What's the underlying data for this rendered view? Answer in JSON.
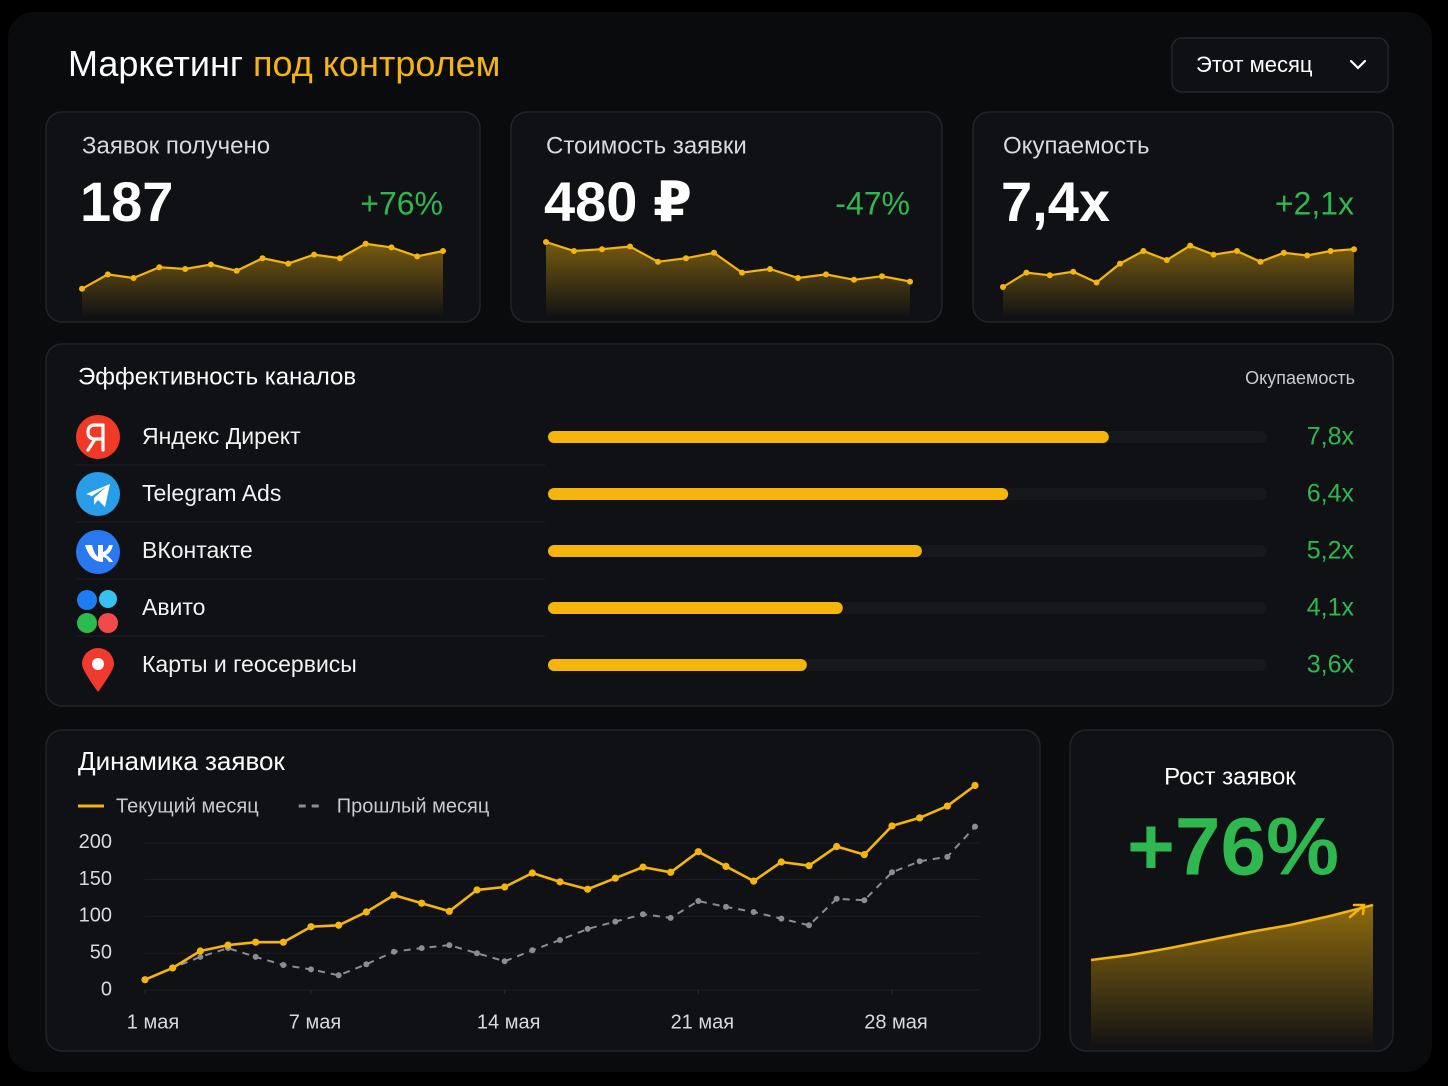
{
  "header": {
    "title": "Маркетинг",
    "title_accent": "под контролем",
    "period": "Этот месяц"
  },
  "kpis": [
    {
      "label": "Заявок получено",
      "value": "187",
      "change": "+76%",
      "sparkline": {
        "type": "line",
        "values": [
          18,
          34,
          30,
          42,
          40,
          45,
          38,
          52,
          46,
          56,
          52,
          68,
          64,
          54,
          60
        ],
        "ylim": [
          0,
          100
        ],
        "color": "#f5b50a"
      }
    },
    {
      "label": "Стоимость заявки",
      "value": "480 ₽",
      "change": "-47%",
      "sparkline": {
        "type": "line",
        "values": [
          70,
          60,
          62,
          65,
          48,
          52,
          58,
          36,
          40,
          30,
          34,
          28,
          32,
          26
        ],
        "ylim": [
          0,
          100
        ],
        "color": "#f5b50a"
      }
    },
    {
      "label": "Окупаемость",
      "value": "7,4x",
      "change": "+2,1x",
      "sparkline": {
        "type": "line",
        "values": [
          20,
          36,
          33,
          37,
          25,
          46,
          60,
          50,
          66,
          56,
          60,
          48,
          58,
          55,
          60,
          62
        ],
        "ylim": [
          0,
          100
        ],
        "color": "#f5b50a"
      }
    }
  ],
  "channels": {
    "type": "bar",
    "title": "Эффективность каналов",
    "column": "Окупаемость",
    "categories": [
      "Яндекс Директ",
      "Telegram Ads",
      "ВКонтакте",
      "Авито",
      "Карты и геосервисы"
    ],
    "values": [
      7.8,
      6.4,
      5.2,
      4.1,
      3.6
    ],
    "value_labels": [
      "7,8x",
      "6,4x",
      "5,2x",
      "4,1x",
      "3,6x"
    ],
    "xlim": [
      0,
      10
    ],
    "color": "#f5b50a"
  },
  "dynamics": {
    "type": "line",
    "title": "Динамика заявок",
    "x": [
      1,
      2,
      3,
      4,
      5,
      6,
      7,
      8,
      9,
      10,
      11,
      12,
      13,
      14,
      15,
      16,
      17,
      18,
      19,
      20,
      21,
      22,
      23,
      24,
      25,
      26,
      27,
      28,
      29,
      30,
      31
    ],
    "xlim": [
      1,
      31
    ],
    "xticks": [
      {
        "value": 1,
        "label": "1 мая"
      },
      {
        "value": 7,
        "label": "7 мая"
      },
      {
        "value": 14,
        "label": "14 мая"
      },
      {
        "value": 21,
        "label": "21 мая"
      },
      {
        "value": 28,
        "label": "28 мая"
      }
    ],
    "ylim": [
      0,
      280
    ],
    "yticks": [
      0,
      50,
      100,
      150,
      200
    ],
    "grid": true,
    "series": [
      {
        "name": "Текущий месяц",
        "color": "#f5b50a",
        "values": [
          14,
          30,
          53,
          61,
          65,
          65,
          86,
          88,
          106,
          129,
          118,
          107,
          136,
          140,
          159,
          147,
          137,
          152,
          167,
          160,
          188,
          168,
          148,
          174,
          169,
          195,
          184,
          223,
          234,
          250,
          278
        ]
      },
      {
        "name": "Прошлый месяц",
        "color": "#8a8d93",
        "dashed": true,
        "values": [
          14,
          30,
          45,
          57,
          45,
          34,
          28,
          20,
          35,
          52,
          57,
          61,
          50,
          39,
          54,
          68,
          83,
          93,
          103,
          98,
          121,
          113,
          106,
          97,
          88,
          124,
          122,
          160,
          175,
          181,
          222
        ]
      }
    ]
  },
  "growth": {
    "title": "Рост заявок",
    "value": "+76%"
  }
}
